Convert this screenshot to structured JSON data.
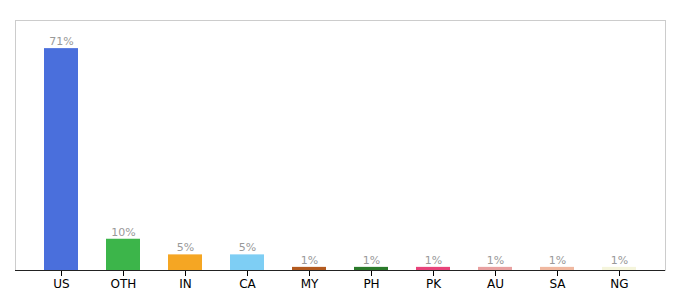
{
  "chart_data": {
    "type": "bar",
    "categories": [
      "US",
      "OTH",
      "IN",
      "CA",
      "MY",
      "PH",
      "PK",
      "AU",
      "SA",
      "NG"
    ],
    "values": [
      71,
      10,
      5,
      5,
      1,
      1,
      1,
      1,
      1,
      1
    ],
    "value_labels": [
      "71%",
      "10%",
      "5%",
      "5%",
      "1%",
      "1%",
      "1%",
      "1%",
      "1%",
      "1%"
    ],
    "colors": [
      "#4a6fdc",
      "#3cb54a",
      "#f5a623",
      "#7ecef4",
      "#b35a1f",
      "#2a7a2a",
      "#e8437a",
      "#e8a0a0",
      "#f0b8a0",
      "#f5f5dc"
    ],
    "ylim": [
      0,
      80
    ],
    "data_labels": true,
    "tick_labels": "x"
  }
}
